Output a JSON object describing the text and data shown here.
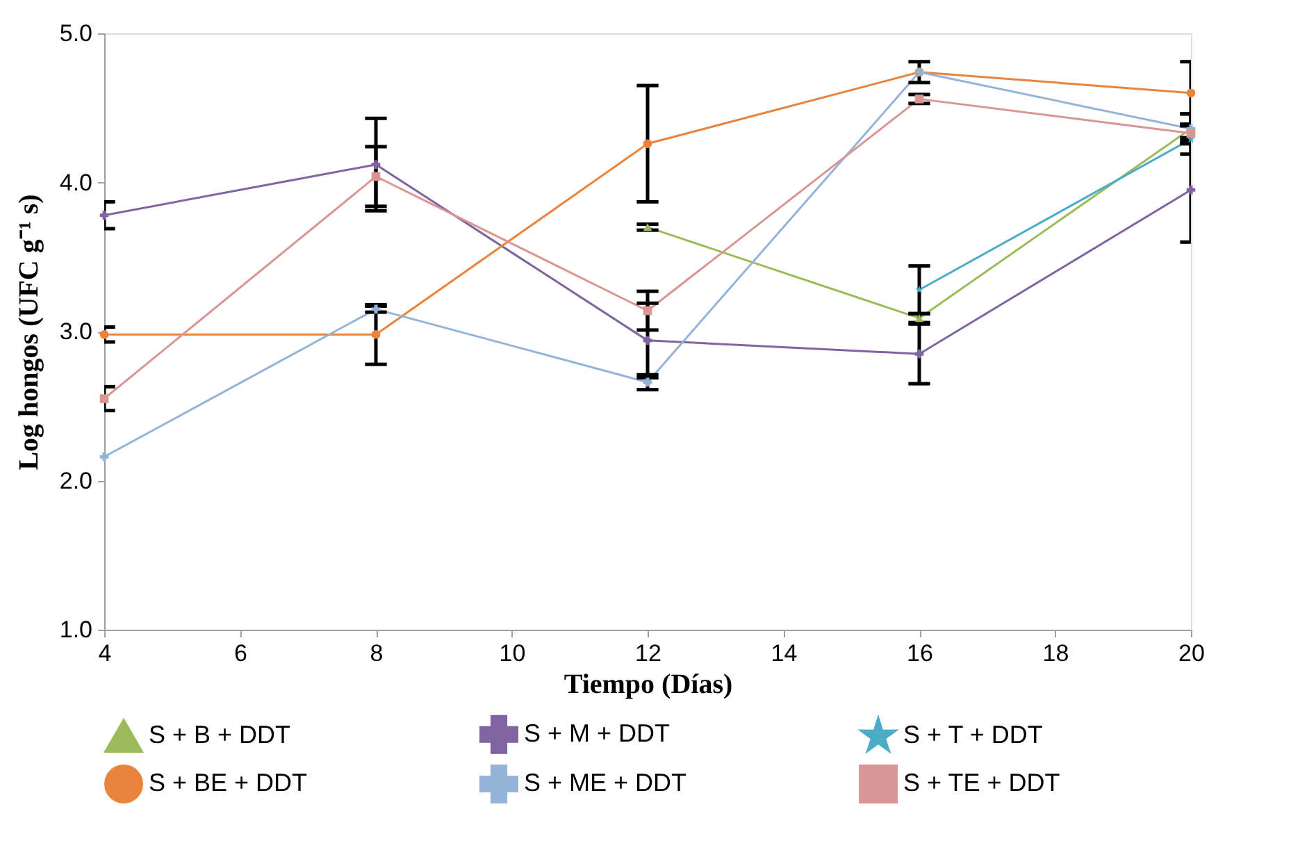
{
  "chart_data": {
    "type": "line",
    "xlabel": "Tiempo (Días)",
    "ylabel": "Log hongos (UFC g⁻¹ s)",
    "x": [
      4,
      8,
      12,
      16,
      20
    ],
    "xlim": [
      4,
      20
    ],
    "xticks": [
      4,
      6,
      8,
      10,
      12,
      14,
      16,
      18,
      20
    ],
    "ylim": [
      1,
      5
    ],
    "yticks": [
      {
        "value": 1,
        "label": "1.0"
      },
      {
        "value": 2,
        "label": "2.0"
      },
      {
        "value": 3,
        "label": "3.0"
      },
      {
        "value": 4,
        "label": "4.0"
      },
      {
        "value": 5,
        "label": "5.0"
      }
    ],
    "grid": false,
    "legend": "bottom",
    "line_style": "solid",
    "series": [
      {
        "name": "S + B + DDT",
        "color": "#9bbb59",
        "marker": "triangle",
        "values": [
          null,
          null,
          3.7,
          3.09,
          4.36
        ],
        "errors": [
          null,
          null,
          0.02,
          0.03,
          0.1
        ]
      },
      {
        "name": "S + M + DDT",
        "color": "#8064a2",
        "marker": "cross",
        "values": [
          3.78,
          4.12,
          2.94,
          2.85,
          3.95
        ],
        "errors": [
          0.09,
          0.31,
          0.25,
          0.2,
          0.35
        ]
      },
      {
        "name": "S + T + DDT",
        "color": "#4bacc6",
        "marker": "star",
        "values": [
          null,
          null,
          null,
          3.28,
          4.29
        ],
        "errors": [
          null,
          null,
          null,
          0.16,
          0.1
        ]
      },
      {
        "name": "S + BE + DDT",
        "color": "#e8843c",
        "marker": "circle",
        "values": [
          2.98,
          2.98,
          4.26,
          4.74,
          4.6
        ],
        "errors": [
          0.05,
          0.2,
          0.39,
          0.07,
          0.21
        ]
      },
      {
        "name": "S + ME + DDT",
        "color": "#95b3d7",
        "marker": "cross",
        "values": [
          2.16,
          3.15,
          2.66,
          4.74,
          4.36
        ],
        "errors": [
          null,
          0.02,
          0.05,
          null,
          0.1
        ]
      },
      {
        "name": "S + TE + DDT",
        "color": "#d99694",
        "marker": "square",
        "values": [
          2.55,
          4.04,
          3.14,
          4.56,
          4.33
        ],
        "errors": [
          0.08,
          0.2,
          0.13,
          0.03,
          0.05
        ]
      }
    ]
  }
}
